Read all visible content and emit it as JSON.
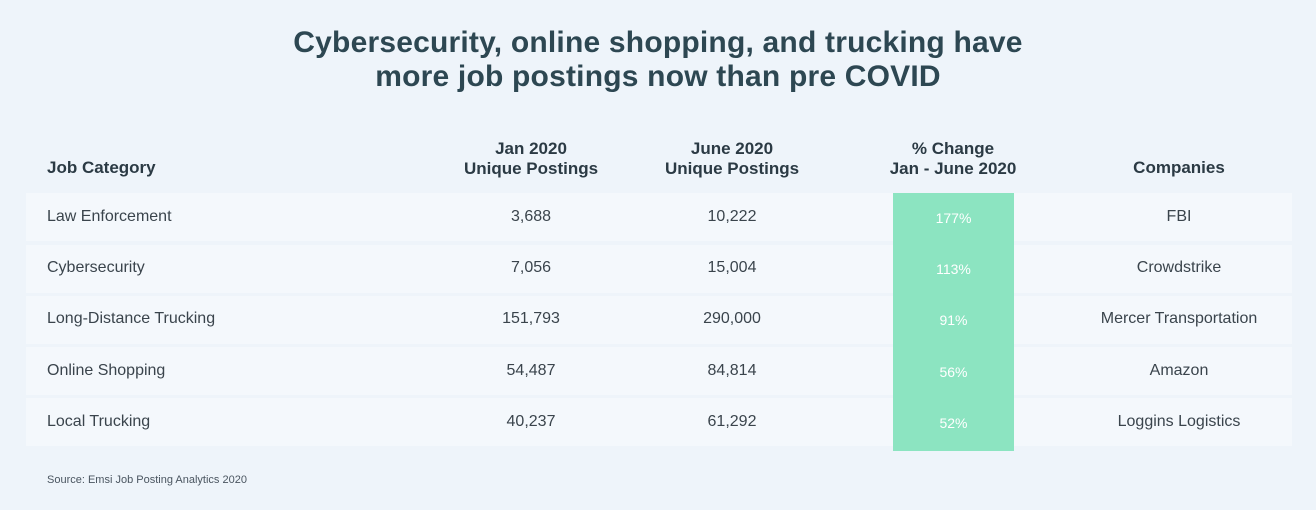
{
  "chart_data": {
    "type": "table",
    "title": [
      "Cybersecurity, online shopping, and trucking have",
      "more job postings now than pre COVID"
    ],
    "columns": [
      {
        "key": "category",
        "label": [
          "Job Category"
        ]
      },
      {
        "key": "jan",
        "label": [
          "Jan 2020",
          "Unique Postings"
        ]
      },
      {
        "key": "june",
        "label": [
          "June 2020",
          "Unique Postings"
        ]
      },
      {
        "key": "change",
        "label": [
          "% Change",
          "Jan - June 2020"
        ]
      },
      {
        "key": "companies",
        "label": [
          "Companies"
        ]
      }
    ],
    "rows": [
      {
        "category": "Law Enforcement",
        "jan": "3,688",
        "june": "10,222",
        "change": "177%",
        "companies": "FBI"
      },
      {
        "category": "Cybersecurity",
        "jan": "7,056",
        "june": "15,004",
        "change": "113%",
        "companies": "Crowdstrike"
      },
      {
        "category": "Long-Distance Trucking",
        "jan": "151,793",
        "june": "290,000",
        "change": "91%",
        "companies": "Mercer Transportation"
      },
      {
        "category": "Online Shopping",
        "jan": "54,487",
        "june": "84,814",
        "change": "56%",
        "companies": "Amazon"
      },
      {
        "category": "Local Trucking",
        "jan": "40,237",
        "june": "61,292",
        "change": "52%",
        "companies": "Loggins Logistics"
      }
    ],
    "source": "Source: Emsi Job Posting Analytics 2020",
    "colors": {
      "background": "#eef4fa",
      "row": "#f4f8fc",
      "highlight": "#8ce4c1",
      "title": "#2d4752"
    }
  }
}
